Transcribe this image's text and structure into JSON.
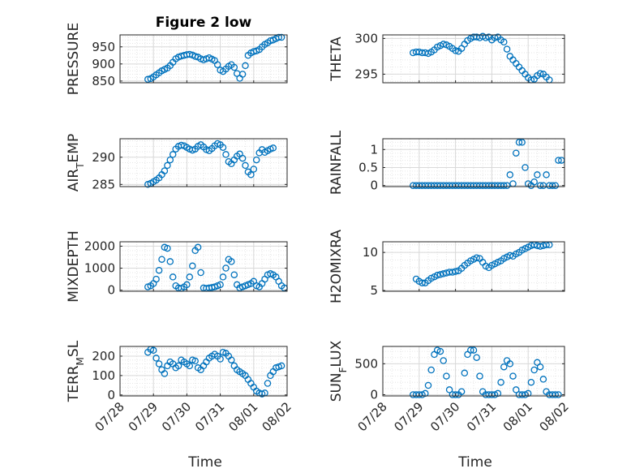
{
  "figure_title": "Figure 2 low",
  "colors": {
    "marker": "#0072bd",
    "axis": "#262626",
    "grid": "#d9d9d9"
  },
  "chart_data": [
    {
      "type": "scatter",
      "panel": "pressure",
      "title": "Figure 2 low",
      "xlabel": "",
      "ylabel": "PRESSURE",
      "xlim": [
        "07/28",
        "08/02"
      ],
      "ylim": [
        845,
        985
      ],
      "yticks": [
        850,
        900,
        950
      ],
      "xticks": [],
      "grid": true,
      "minor_grid": true,
      "x": [
        "07/28 20:00",
        "07/28 22:00",
        "07/29 00:00",
        "07/29 02:00",
        "07/29 04:00",
        "07/29 06:00",
        "07/29 08:00",
        "07/29 10:00",
        "07/29 12:00",
        "07/29 14:00",
        "07/29 16:00",
        "07/29 18:00",
        "07/29 20:00",
        "07/29 22:00",
        "07/30 00:00",
        "07/30 02:00",
        "07/30 04:00",
        "07/30 06:00",
        "07/30 08:00",
        "07/30 10:00",
        "07/30 12:00",
        "07/30 14:00",
        "07/30 16:00",
        "07/30 18:00",
        "07/30 20:00",
        "07/30 22:00",
        "07/31 00:00",
        "07/31 02:00",
        "07/31 04:00",
        "07/31 06:00",
        "07/31 08:00",
        "07/31 10:00",
        "07/31 12:00",
        "07/31 14:00",
        "07/31 16:00",
        "07/31 18:00",
        "07/31 20:00",
        "07/31 22:00",
        "08/01 00:00",
        "08/01 02:00",
        "08/01 04:00",
        "08/01 06:00",
        "08/01 08:00",
        "08/01 10:00",
        "08/01 12:00",
        "08/01 14:00",
        "08/01 16:00",
        "08/01 18:00",
        "08/01 20:00"
      ],
      "y": [
        855,
        857,
        862,
        868,
        874,
        880,
        884,
        888,
        895,
        905,
        915,
        920,
        923,
        925,
        927,
        928,
        926,
        922,
        920,
        915,
        912,
        915,
        918,
        914,
        910,
        898,
        882,
        878,
        885,
        893,
        898,
        890,
        872,
        858,
        870,
        895,
        925,
        932,
        936,
        938,
        942,
        950,
        957,
        962,
        968,
        970,
        974,
        978,
        978
      ]
    },
    {
      "type": "scatter",
      "panel": "theta",
      "title": "",
      "xlabel": "",
      "ylabel": "THETA",
      "xlim": [
        "07/28",
        "08/02"
      ],
      "ylim": [
        293.8,
        300.5
      ],
      "yticks": [
        295,
        300
      ],
      "xticks": [],
      "grid": true,
      "minor_grid": true,
      "x": [
        "07/28 20:00",
        "07/28 22:00",
        "07/29 00:00",
        "07/29 02:00",
        "07/29 04:00",
        "07/29 06:00",
        "07/29 08:00",
        "07/29 10:00",
        "07/29 12:00",
        "07/29 14:00",
        "07/29 16:00",
        "07/29 18:00",
        "07/29 20:00",
        "07/29 22:00",
        "07/30 00:00",
        "07/30 02:00",
        "07/30 04:00",
        "07/30 06:00",
        "07/30 08:00",
        "07/30 10:00",
        "07/30 12:00",
        "07/30 14:00",
        "07/30 16:00",
        "07/30 18:00",
        "07/30 20:00",
        "07/30 22:00",
        "07/31 00:00",
        "07/31 02:00",
        "07/31 04:00",
        "07/31 06:00",
        "07/31 08:00",
        "07/31 10:00",
        "07/31 12:00",
        "07/31 14:00",
        "07/31 16:00",
        "07/31 18:00",
        "07/31 20:00",
        "07/31 22:00",
        "08/01 00:00",
        "08/01 02:00",
        "08/01 04:00",
        "08/01 06:00",
        "08/01 08:00",
        "08/01 10:00",
        "08/01 12:00",
        "08/01 14:00"
      ],
      "y": [
        298,
        298.1,
        298.1,
        298,
        298,
        297.9,
        298.1,
        298.4,
        298.8,
        299,
        299.2,
        299.1,
        298.9,
        298.6,
        298.3,
        298.2,
        298.6,
        299.2,
        299.7,
        300,
        300.2,
        300.2,
        300.1,
        300.3,
        300.1,
        300.2,
        299.8,
        300.1,
        300.2,
        299.8,
        299.5,
        298.5,
        297.5,
        297,
        296.5,
        296,
        295.5,
        295,
        294.5,
        294.2,
        294.3,
        294.8,
        295.1,
        295,
        294.6,
        294.2
      ]
    },
    {
      "type": "scatter",
      "panel": "air_temp",
      "title": "",
      "xlabel": "",
      "ylabel": "AIR_TEMP",
      "xlim": [
        "07/28",
        "08/02"
      ],
      "ylim": [
        284.6,
        293.4
      ],
      "yticks": [
        285,
        290
      ],
      "xticks": [],
      "grid": true,
      "minor_grid": true,
      "x": [
        "07/28 20:00",
        "07/28 22:00",
        "07/29 00:00",
        "07/29 02:00",
        "07/29 04:00",
        "07/29 06:00",
        "07/29 08:00",
        "07/29 10:00",
        "07/29 12:00",
        "07/29 14:00",
        "07/29 16:00",
        "07/29 18:00",
        "07/29 20:00",
        "07/29 22:00",
        "07/30 00:00",
        "07/30 02:00",
        "07/30 04:00",
        "07/30 06:00",
        "07/30 08:00",
        "07/30 10:00",
        "07/30 12:00",
        "07/30 14:00",
        "07/30 16:00",
        "07/30 18:00",
        "07/30 20:00",
        "07/30 22:00",
        "07/31 00:00",
        "07/31 02:00",
        "07/31 04:00",
        "07/31 06:00",
        "07/31 08:00",
        "07/31 10:00",
        "07/31 12:00",
        "07/31 14:00",
        "07/31 16:00",
        "07/31 18:00",
        "07/31 20:00",
        "07/31 22:00",
        "08/01 00:00",
        "08/01 02:00",
        "08/01 04:00",
        "08/01 06:00",
        "08/01 08:00",
        "08/01 10:00",
        "08/01 12:00",
        "08/01 14:00"
      ],
      "y": [
        285,
        285.2,
        285.5,
        285.8,
        286.2,
        286.8,
        287.5,
        288.5,
        289.5,
        290.5,
        291.5,
        292,
        292.2,
        292.1,
        291.8,
        291.5,
        291.3,
        291.5,
        292,
        292.3,
        291.9,
        291.4,
        291.2,
        291.6,
        292.1,
        292.5,
        292.3,
        291.8,
        290.5,
        289.2,
        288.8,
        289.5,
        290.2,
        290.6,
        289.8,
        288.5,
        287.3,
        286.8,
        287.8,
        289.5,
        290.8,
        291.4,
        290.9,
        291.2,
        291.5,
        291.7
      ]
    },
    {
      "type": "scatter",
      "panel": "rainfall",
      "title": "",
      "xlabel": "",
      "ylabel": "RAINFALL",
      "xlim": [
        "07/28",
        "08/02"
      ],
      "ylim": [
        -0.03,
        1.3
      ],
      "yticks": [
        0,
        0.5,
        1
      ],
      "xticks": [],
      "grid": true,
      "minor_grid": true,
      "x": [
        "07/28 20:00",
        "07/28 22:00",
        "07/29 00:00",
        "07/29 02:00",
        "07/29 04:00",
        "07/29 06:00",
        "07/29 08:00",
        "07/29 10:00",
        "07/29 12:00",
        "07/29 14:00",
        "07/29 16:00",
        "07/29 18:00",
        "07/29 20:00",
        "07/29 22:00",
        "07/30 00:00",
        "07/30 02:00",
        "07/30 04:00",
        "07/30 06:00",
        "07/30 08:00",
        "07/30 10:00",
        "07/30 12:00",
        "07/30 14:00",
        "07/30 16:00",
        "07/30 18:00",
        "07/30 20:00",
        "07/30 22:00",
        "07/31 00:00",
        "07/31 02:00",
        "07/31 04:00",
        "07/31 06:00",
        "07/31 08:00",
        "07/31 10:00",
        "07/31 12:00",
        "07/31 14:00",
        "07/31 16:00",
        "07/31 18:00",
        "07/31 20:00",
        "07/31 22:00",
        "08/01 00:00",
        "08/01 02:00",
        "08/01 04:00",
        "08/01 06:00",
        "08/01 08:00",
        "08/01 10:00",
        "08/01 12:00",
        "08/01 14:00",
        "08/01 16:00",
        "08/01 18:00",
        "08/01 20:00",
        "08/01 22:00"
      ],
      "y": [
        0,
        0,
        0,
        0,
        0,
        0,
        0,
        0,
        0,
        0,
        0,
        0,
        0,
        0,
        0,
        0,
        0,
        0,
        0,
        0,
        0,
        0,
        0,
        0,
        0,
        0,
        0,
        0,
        0,
        0,
        0,
        0,
        0.3,
        0.05,
        0.9,
        1.2,
        1.2,
        0.5,
        0.05,
        0,
        0.1,
        0.3,
        0,
        0,
        0.3,
        0,
        0,
        0,
        0.7,
        0.7
      ]
    },
    {
      "type": "scatter",
      "panel": "mixdepth",
      "title": "",
      "xlabel": "",
      "ylabel": "MIXDEPTH",
      "xlim": [
        "07/28",
        "08/02"
      ],
      "ylim": [
        -50,
        2200
      ],
      "yticks": [
        0,
        1000,
        2000
      ],
      "xticks": [],
      "grid": true,
      "minor_grid": true,
      "x": [
        "07/28 20:00",
        "07/28 22:00",
        "07/29 00:00",
        "07/29 02:00",
        "07/29 04:00",
        "07/29 06:00",
        "07/29 08:00",
        "07/29 10:00",
        "07/29 12:00",
        "07/29 14:00",
        "07/29 16:00",
        "07/29 18:00",
        "07/29 20:00",
        "07/29 22:00",
        "07/30 00:00",
        "07/30 02:00",
        "07/30 04:00",
        "07/30 06:00",
        "07/30 08:00",
        "07/30 10:00",
        "07/30 12:00",
        "07/30 14:00",
        "07/30 16:00",
        "07/30 18:00",
        "07/30 20:00",
        "07/30 22:00",
        "07/31 00:00",
        "07/31 02:00",
        "07/31 04:00",
        "07/31 06:00",
        "07/31 08:00",
        "07/31 10:00",
        "07/31 12:00",
        "07/31 14:00",
        "07/31 16:00",
        "07/31 18:00",
        "07/31 20:00",
        "07/31 22:00",
        "08/01 00:00",
        "08/01 02:00",
        "08/01 04:00",
        "08/01 06:00",
        "08/01 08:00",
        "08/01 10:00",
        "08/01 12:00",
        "08/01 14:00",
        "08/01 16:00",
        "08/01 18:00",
        "08/01 20:00",
        "08/01 22:00"
      ],
      "y": [
        150,
        200,
        300,
        500,
        900,
        1400,
        1950,
        1900,
        1300,
        600,
        200,
        100,
        80,
        150,
        250,
        600,
        1100,
        1800,
        1950,
        800,
        100,
        80,
        100,
        120,
        150,
        200,
        250,
        600,
        1000,
        1400,
        1300,
        700,
        250,
        100,
        150,
        200,
        250,
        300,
        400,
        200,
        150,
        300,
        500,
        700,
        750,
        700,
        600,
        400,
        200,
        100
      ]
    },
    {
      "type": "scatter",
      "panel": "h2omixra",
      "title": "",
      "xlabel": "",
      "ylabel": "H2OMIXRA",
      "xlim": [
        "07/28",
        "08/02"
      ],
      "ylim": [
        4.9,
        11.4
      ],
      "yticks": [
        5,
        10
      ],
      "xticks": [],
      "grid": true,
      "minor_grid": true,
      "x": [
        "07/28 22:00",
        "07/29 00:00",
        "07/29 02:00",
        "07/29 04:00",
        "07/29 06:00",
        "07/29 08:00",
        "07/29 10:00",
        "07/29 12:00",
        "07/29 14:00",
        "07/29 16:00",
        "07/29 18:00",
        "07/29 20:00",
        "07/29 22:00",
        "07/30 00:00",
        "07/30 02:00",
        "07/30 04:00",
        "07/30 06:00",
        "07/30 08:00",
        "07/30 10:00",
        "07/30 12:00",
        "07/30 14:00",
        "07/30 16:00",
        "07/30 18:00",
        "07/30 20:00",
        "07/30 22:00",
        "07/31 00:00",
        "07/31 02:00",
        "07/31 04:00",
        "07/31 06:00",
        "07/31 08:00",
        "07/31 10:00",
        "07/31 12:00",
        "07/31 14:00",
        "07/31 16:00",
        "07/31 18:00",
        "07/31 20:00",
        "07/31 22:00",
        "08/01 00:00",
        "08/01 02:00",
        "08/01 04:00",
        "08/01 06:00",
        "08/01 08:00",
        "08/01 10:00",
        "08/01 12:00",
        "08/01 14:00"
      ],
      "y": [
        6.5,
        6.2,
        6,
        6,
        6.3,
        6.6,
        6.8,
        7,
        7.1,
        7.2,
        7.3,
        7.4,
        7.4,
        7.5,
        7.6,
        7.9,
        8.3,
        8.6,
        8.9,
        9.1,
        9.3,
        9.2,
        8.7,
        8.2,
        8,
        8.3,
        8.5,
        8.7,
        8.9,
        9.2,
        9.4,
        9.6,
        9.5,
        9.8,
        10,
        10.3,
        10.5,
        10.7,
        10.9,
        11,
        10.9,
        10.8,
        10.9,
        11,
        11
      ]
    },
    {
      "type": "scatter",
      "panel": "terr_msl",
      "title": "",
      "xlabel": "Time",
      "ylabel": "TERR_MSL",
      "xlim": [
        "07/28",
        "08/02"
      ],
      "ylim": [
        -5,
        250
      ],
      "yticks": [
        0,
        100,
        200
      ],
      "xticks": [
        "07/28",
        "07/29",
        "07/30",
        "07/31",
        "08/01",
        "08/02"
      ],
      "grid": true,
      "minor_grid": true,
      "x": [
        "07/28 20:00",
        "07/28 22:00",
        "07/29 00:00",
        "07/29 02:00",
        "07/29 04:00",
        "07/29 06:00",
        "07/29 08:00",
        "07/29 10:00",
        "07/29 12:00",
        "07/29 14:00",
        "07/29 16:00",
        "07/29 18:00",
        "07/29 20:00",
        "07/29 22:00",
        "07/30 00:00",
        "07/30 02:00",
        "07/30 04:00",
        "07/30 06:00",
        "07/30 08:00",
        "07/30 10:00",
        "07/30 12:00",
        "07/30 14:00",
        "07/30 16:00",
        "07/30 18:00",
        "07/30 20:00",
        "07/30 22:00",
        "07/31 00:00",
        "07/31 02:00",
        "07/31 04:00",
        "07/31 06:00",
        "07/31 08:00",
        "07/31 10:00",
        "07/31 12:00",
        "07/31 14:00",
        "07/31 16:00",
        "07/31 18:00",
        "07/31 20:00",
        "07/31 22:00",
        "08/01 00:00",
        "08/01 02:00",
        "08/01 04:00",
        "08/01 06:00",
        "08/01 08:00",
        "08/01 10:00",
        "08/01 12:00",
        "08/01 14:00",
        "08/01 16:00",
        "08/01 18:00",
        "08/01 20:00"
      ],
      "y": [
        220,
        235,
        230,
        190,
        160,
        130,
        110,
        150,
        170,
        160,
        140,
        150,
        180,
        170,
        160,
        150,
        180,
        175,
        140,
        130,
        150,
        170,
        190,
        200,
        210,
        200,
        185,
        220,
        215,
        200,
        180,
        150,
        130,
        120,
        110,
        100,
        80,
        60,
        40,
        20,
        10,
        5,
        10,
        60,
        100,
        120,
        140,
        145,
        150
      ]
    },
    {
      "type": "scatter",
      "panel": "sun_flux",
      "title": "",
      "xlabel": "Time",
      "ylabel": "SUN_FLUX",
      "xlim": [
        "07/28",
        "08/02"
      ],
      "ylim": [
        -20,
        780
      ],
      "yticks": [
        0,
        500
      ],
      "xticks": [
        "07/28",
        "07/29",
        "07/30",
        "07/31",
        "08/01",
        "08/02"
      ],
      "grid": true,
      "minor_grid": true,
      "x": [
        "07/28 20:00",
        "07/28 22:00",
        "07/29 00:00",
        "07/29 02:00",
        "07/29 04:00",
        "07/29 06:00",
        "07/29 08:00",
        "07/29 10:00",
        "07/29 12:00",
        "07/29 14:00",
        "07/29 16:00",
        "07/29 18:00",
        "07/29 20:00",
        "07/29 22:00",
        "07/30 00:00",
        "07/30 02:00",
        "07/30 04:00",
        "07/30 06:00",
        "07/30 08:00",
        "07/30 10:00",
        "07/30 12:00",
        "07/30 14:00",
        "07/30 16:00",
        "07/30 18:00",
        "07/30 20:00",
        "07/30 22:00",
        "07/31 00:00",
        "07/31 02:00",
        "07/31 04:00",
        "07/31 06:00",
        "07/31 08:00",
        "07/31 10:00",
        "07/31 12:00",
        "07/31 14:00",
        "07/31 16:00",
        "07/31 18:00",
        "07/31 20:00",
        "07/31 22:00",
        "08/01 00:00",
        "08/01 02:00",
        "08/01 04:00",
        "08/01 06:00",
        "08/01 08:00",
        "08/01 10:00",
        "08/01 12:00",
        "08/01 14:00",
        "08/01 16:00",
        "08/01 18:00",
        "08/01 20:00"
      ],
      "y": [
        0,
        0,
        0,
        0,
        20,
        150,
        400,
        650,
        720,
        700,
        550,
        300,
        80,
        0,
        0,
        0,
        50,
        350,
        650,
        720,
        720,
        600,
        300,
        50,
        0,
        0,
        0,
        0,
        20,
        200,
        450,
        550,
        500,
        300,
        80,
        0,
        0,
        0,
        20,
        200,
        400,
        520,
        450,
        250,
        50,
        0,
        0,
        0,
        0
      ]
    }
  ]
}
